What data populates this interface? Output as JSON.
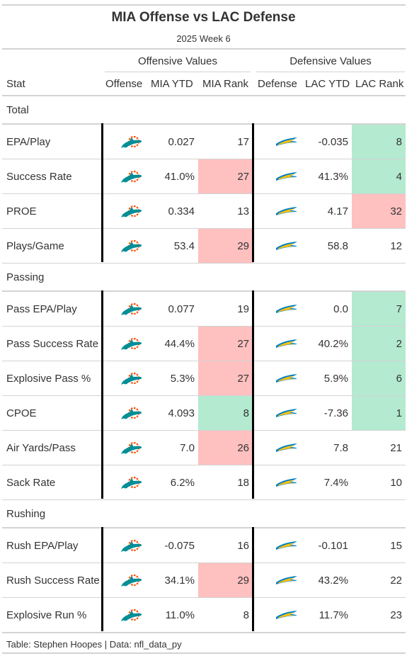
{
  "title": "MIA Offense vs LAC Defense",
  "subtitle": "2025 Week 6",
  "spanners": {
    "offense": "Offensive Values",
    "defense": "Defensive Values"
  },
  "columns": {
    "stat": "Stat",
    "offense": "Offense",
    "off_ytd": "MIA YTD",
    "off_rank": "MIA Rank",
    "defense": "Defense",
    "def_ytd": "LAC YTD",
    "def_rank": "LAC Rank"
  },
  "colors": {
    "good": "#b3ead0",
    "bad": "#ffc0c0",
    "mia_teal": "#008e97",
    "mia_orange": "#fc4c02",
    "lac_blue": "#0080c6",
    "lac_gold": "#ffc20e"
  },
  "icons": {
    "offense": "dolphins-logo",
    "defense": "chargers-bolt-logo"
  },
  "chart_data": {
    "type": "table",
    "groups": [
      {
        "label": "Total",
        "rows": [
          {
            "stat": "EPA/Play",
            "off_ytd": "0.027",
            "off_rank": "17",
            "off_color": "",
            "def_ytd": "-0.035",
            "def_rank": "8",
            "def_color": "good"
          },
          {
            "stat": "Success Rate",
            "off_ytd": "41.0%",
            "off_rank": "27",
            "off_color": "bad",
            "def_ytd": "41.3%",
            "def_rank": "4",
            "def_color": "good"
          },
          {
            "stat": "PROE",
            "off_ytd": "0.334",
            "off_rank": "13",
            "off_color": "",
            "def_ytd": "4.17",
            "def_rank": "32",
            "def_color": "bad"
          },
          {
            "stat": "Plays/Game",
            "off_ytd": "53.4",
            "off_rank": "29",
            "off_color": "bad",
            "def_ytd": "58.8",
            "def_rank": "12",
            "def_color": ""
          }
        ]
      },
      {
        "label": "Passing",
        "rows": [
          {
            "stat": "Pass EPA/Play",
            "off_ytd": "0.077",
            "off_rank": "19",
            "off_color": "",
            "def_ytd": "0.0",
            "def_rank": "7",
            "def_color": "good"
          },
          {
            "stat": "Pass Success Rate",
            "off_ytd": "44.4%",
            "off_rank": "27",
            "off_color": "bad",
            "def_ytd": "40.2%",
            "def_rank": "2",
            "def_color": "good"
          },
          {
            "stat": "Explosive Pass %",
            "off_ytd": "5.3%",
            "off_rank": "27",
            "off_color": "bad",
            "def_ytd": "5.9%",
            "def_rank": "6",
            "def_color": "good"
          },
          {
            "stat": "CPOE",
            "off_ytd": "4.093",
            "off_rank": "8",
            "off_color": "good",
            "def_ytd": "-7.36",
            "def_rank": "1",
            "def_color": "good"
          },
          {
            "stat": "Air Yards/Pass",
            "off_ytd": "7.0",
            "off_rank": "26",
            "off_color": "bad",
            "def_ytd": "7.8",
            "def_rank": "21",
            "def_color": ""
          },
          {
            "stat": "Sack Rate",
            "off_ytd": "6.2%",
            "off_rank": "18",
            "off_color": "",
            "def_ytd": "7.4%",
            "def_rank": "10",
            "def_color": ""
          }
        ]
      },
      {
        "label": "Rushing",
        "rows": [
          {
            "stat": "Rush EPA/Play",
            "off_ytd": "-0.075",
            "off_rank": "16",
            "off_color": "",
            "def_ytd": "-0.101",
            "def_rank": "15",
            "def_color": ""
          },
          {
            "stat": "Rush Success Rate",
            "off_ytd": "34.1%",
            "off_rank": "29",
            "off_color": "bad",
            "def_ytd": "43.2%",
            "def_rank": "22",
            "def_color": ""
          },
          {
            "stat": "Explosive Run %",
            "off_ytd": "11.0%",
            "off_rank": "8",
            "off_color": "",
            "def_ytd": "11.7%",
            "def_rank": "23",
            "def_color": ""
          }
        ]
      }
    ]
  },
  "footer": "Table: Stephen Hoopes | Data: nfl_data_py"
}
